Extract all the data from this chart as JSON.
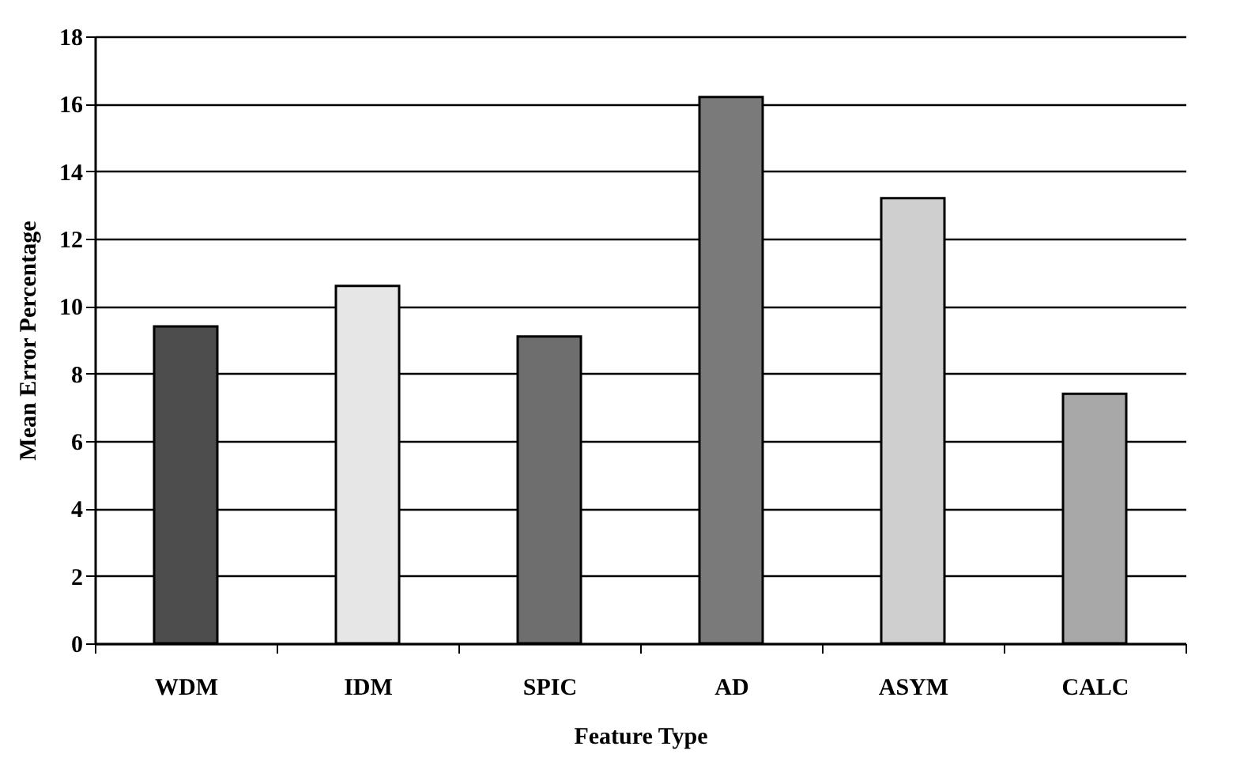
{
  "chart_data": {
    "type": "bar",
    "xlabel": "Feature Type",
    "ylabel": "Mean Error Percentage",
    "categories": [
      "WDM",
      "IDM",
      "SPIC",
      "AD",
      "ASYM",
      "CALC"
    ],
    "values": [
      9.4,
      10.6,
      9.1,
      16.2,
      13.2,
      7.4
    ],
    "colors": [
      "#4d4d4d",
      "#e6e6e6",
      "#6e6e6e",
      "#7a7a7a",
      "#cfcfcf",
      "#a8a8a8"
    ],
    "ylim": [
      0,
      18
    ],
    "yticks": [
      0,
      2,
      4,
      6,
      8,
      10,
      12,
      14,
      16,
      18
    ],
    "grid": "y",
    "legend": false
  }
}
